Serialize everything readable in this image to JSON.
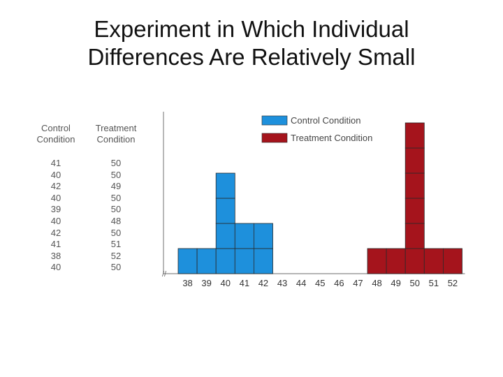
{
  "title": {
    "line1": "Experiment in Which Individual",
    "line2": "Differences Are Relatively Small"
  },
  "table": {
    "control_header": [
      "Control",
      "Condition"
    ],
    "treatment_header": [
      "Treatment",
      "Condition"
    ],
    "control_values": [
      "41",
      "40",
      "42",
      "40",
      "39",
      "40",
      "42",
      "41",
      "38",
      "40"
    ],
    "treatment_values": [
      "50",
      "50",
      "49",
      "50",
      "50",
      "48",
      "50",
      "51",
      "52",
      "50"
    ]
  },
  "chart_data": {
    "type": "bar",
    "categories": [
      "38",
      "39",
      "40",
      "41",
      "42",
      "43",
      "44",
      "45",
      "46",
      "47",
      "48",
      "49",
      "50",
      "51",
      "52"
    ],
    "series": [
      {
        "name": "Control Condition",
        "color": "#1e90dc",
        "values": [
          1,
          1,
          4,
          2,
          2,
          0,
          0,
          0,
          0,
          0,
          0,
          0,
          0,
          0,
          0
        ]
      },
      {
        "name": "Treatment Condition",
        "color": "#a5141c",
        "values": [
          0,
          0,
          0,
          0,
          0,
          0,
          0,
          0,
          0,
          0,
          1,
          1,
          6,
          1,
          1
        ]
      }
    ],
    "xlabel": "",
    "ylabel": "",
    "ylim": [
      0,
      6
    ],
    "legend_position": "top",
    "axis_break_symbol": "//",
    "grid": false
  }
}
